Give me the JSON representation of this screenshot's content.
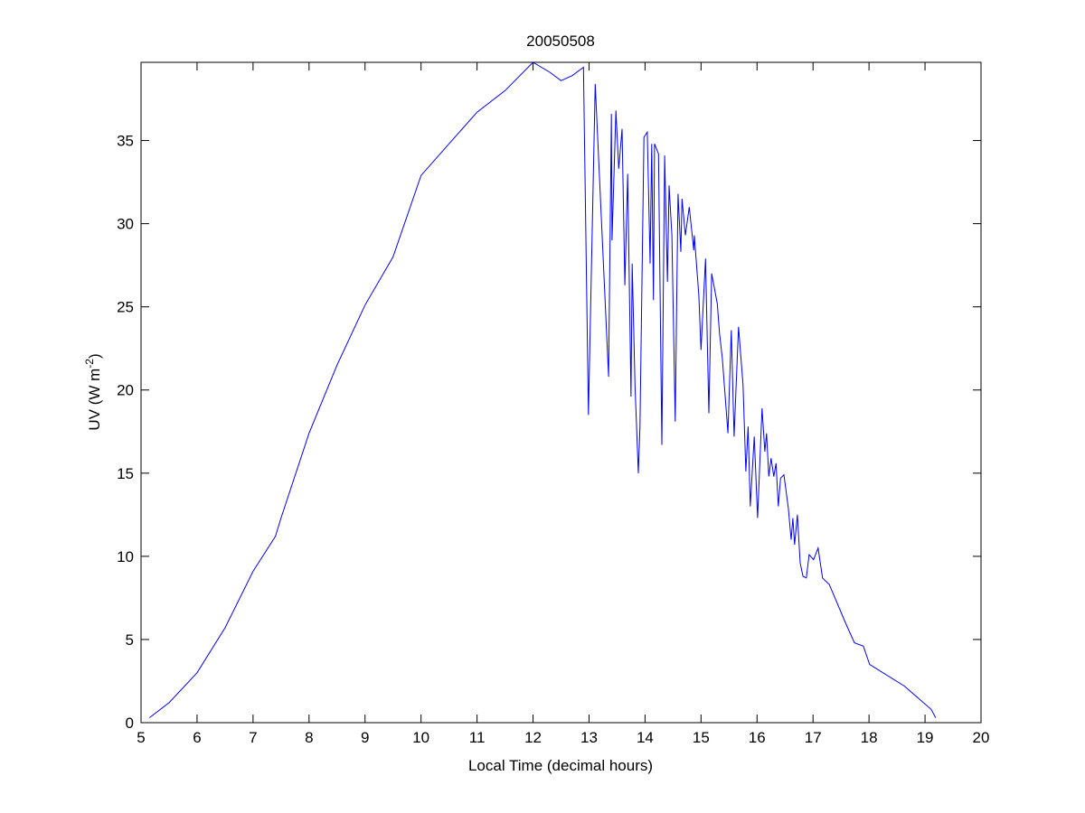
{
  "chart_data": {
    "type": "line",
    "title": "20050508",
    "xlabel": "Local Time (decimal hours)",
    "ylabel_main": "UV (W m",
    "ylabel_sup": "-2",
    "ylabel_close": ")",
    "xlim": [
      5,
      20
    ],
    "ylim": [
      0,
      39.7
    ],
    "xticks": [
      5,
      6,
      7,
      8,
      9,
      10,
      11,
      12,
      13,
      14,
      15,
      16,
      17,
      18,
      19,
      20
    ],
    "yticks": [
      0,
      5,
      10,
      15,
      20,
      25,
      30,
      35
    ],
    "grid": false,
    "line_color": "#0000ff",
    "series": [
      {
        "name": "UV",
        "x": [
          5.15,
          5.5,
          6,
          6.5,
          7,
          7.4,
          7.5,
          8,
          8.5,
          9,
          9.5,
          10,
          10.5,
          11,
          11.5,
          12,
          12.3,
          12.5,
          12.7,
          12.9,
          12.99,
          13.11,
          13.35,
          13.4,
          13.41,
          13.48,
          13.53,
          13.59,
          13.64,
          13.69,
          13.75,
          13.77,
          13.82,
          13.88,
          13.91,
          13.98,
          14.04,
          14.09,
          14.12,
          14.15,
          14.17,
          14.24,
          14.3,
          14.35,
          14.4,
          14.43,
          14.48,
          14.54,
          14.59,
          14.64,
          14.66,
          14.72,
          14.79,
          14.87,
          14.88,
          14.96,
          15.0,
          15.08,
          15.14,
          15.19,
          15.29,
          15.33,
          15.38,
          15.48,
          15.54,
          15.59,
          15.67,
          15.75,
          15.8,
          15.84,
          15.88,
          15.95,
          16.01,
          16.09,
          16.14,
          16.17,
          16.21,
          16.25,
          16.3,
          16.34,
          16.38,
          16.42,
          16.48,
          16.56,
          16.61,
          16.64,
          16.67,
          16.72,
          16.77,
          16.82,
          16.88,
          16.93,
          17.01,
          17.09,
          17.17,
          17.29,
          17.38,
          17.58,
          17.74,
          17.9,
          18.01,
          18.63,
          19.11,
          19.19
        ],
        "y": [
          0.3,
          1.2,
          3.0,
          5.7,
          9.1,
          11.2,
          12.3,
          17.4,
          21.5,
          25.1,
          28.0,
          32.9,
          34.8,
          36.7,
          38.0,
          39.7,
          39.1,
          38.6,
          38.9,
          39.4,
          18.5,
          38.4,
          20.8,
          36.6,
          29.0,
          36.8,
          33.3,
          35.7,
          26.3,
          33.0,
          19.6,
          27.6,
          20.3,
          15.0,
          17.8,
          35.2,
          35.5,
          27.6,
          34.8,
          25.4,
          34.8,
          34.2,
          16.7,
          34.1,
          26.5,
          32.3,
          29.3,
          18.1,
          31.8,
          28.3,
          31.5,
          29.3,
          31.0,
          28.4,
          29.3,
          25.7,
          22.4,
          27.9,
          18.6,
          27.0,
          25.2,
          23.4,
          21.9,
          17.4,
          23.6,
          17.2,
          23.8,
          20.3,
          15.1,
          17.8,
          13.0,
          17.2,
          12.3,
          18.9,
          16.3,
          17.4,
          14.8,
          15.9,
          14.8,
          15.6,
          13.0,
          14.7,
          14.9,
          12.9,
          11.0,
          12.3,
          10.7,
          12.5,
          9.6,
          8.8,
          8.7,
          10.1,
          9.8,
          10.5,
          8.7,
          8.3,
          7.6,
          6.0,
          4.8,
          4.6,
          3.5,
          2.2,
          0.8,
          0.3
        ]
      }
    ]
  }
}
